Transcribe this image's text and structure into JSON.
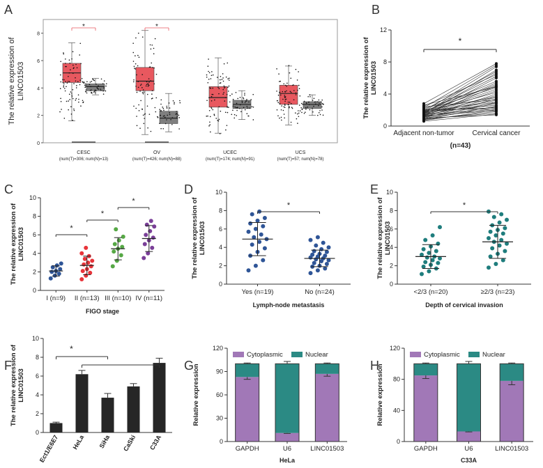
{
  "chart_data": [
    {
      "panel": "A",
      "type": "box",
      "ylabel": "The relative expression of LINC01503",
      "ylim": [
        0,
        9
      ],
      "yticks": [
        0,
        2,
        4,
        6,
        8
      ],
      "groups": [
        {
          "name": "CESC",
          "sub": "(num(T)=306; num(N)=13)",
          "tumor": {
            "q1": 4.4,
            "median": 5.1,
            "q3": 5.8,
            "min": 1.6,
            "max": 7.3
          },
          "normal": {
            "q1": 3.8,
            "median": 4.1,
            "q3": 4.3,
            "min": 3.5,
            "max": 4.7
          },
          "significant": true
        },
        {
          "name": "OV",
          "sub": "(num(T)=426; num(N)=88)",
          "tumor": {
            "q1": 3.8,
            "median": 4.5,
            "q3": 5.5,
            "min": 0.6,
            "max": 8.2
          },
          "normal": {
            "q1": 1.4,
            "median": 1.8,
            "q3": 2.3,
            "min": 0.8,
            "max": 3.6
          },
          "significant": true
        },
        {
          "name": "UCEC",
          "sub": "(num(T)=174; num(N)=91)",
          "tumor": {
            "q1": 2.6,
            "median": 3.3,
            "q3": 4.1,
            "min": 0.7,
            "max": 6.2
          },
          "normal": {
            "q1": 2.5,
            "median": 2.8,
            "q3": 3.1,
            "min": 1.7,
            "max": 3.8
          },
          "significant": false
        },
        {
          "name": "UCS",
          "sub": "(num(T)=57; num(N)=78)",
          "tumor": {
            "q1": 2.8,
            "median": 3.6,
            "q3": 4.2,
            "min": 1.3,
            "max": 5.6
          },
          "normal": {
            "q1": 2.5,
            "median": 2.8,
            "q3": 3.0,
            "min": 2.0,
            "max": 3.5
          },
          "significant": false
        }
      ],
      "colors": {
        "tumor": "#e8585f",
        "normal": "#7f7f7f"
      }
    },
    {
      "panel": "B",
      "type": "paired-line",
      "ylabel": "The relative expression of LINC01503",
      "ylim": [
        0,
        12
      ],
      "yticks": [
        0,
        4,
        8,
        12
      ],
      "categories": [
        "Adjacent non-tumor",
        "Cervical cancer"
      ],
      "note": "(n=43)",
      "significance": "*",
      "pairs": [
        [
          0.6,
          1.5
        ],
        [
          0.7,
          2.0
        ],
        [
          0.8,
          1.8
        ],
        [
          0.8,
          2.5
        ],
        [
          0.9,
          1.6
        ],
        [
          0.9,
          3.0
        ],
        [
          1.0,
          2.2
        ],
        [
          1.0,
          3.4
        ],
        [
          1.0,
          1.4
        ],
        [
          1.1,
          2.8
        ],
        [
          1.1,
          4.0
        ],
        [
          1.2,
          2.4
        ],
        [
          1.2,
          3.6
        ],
        [
          1.2,
          5.0
        ],
        [
          1.3,
          1.9
        ],
        [
          1.3,
          4.4
        ],
        [
          1.3,
          6.0
        ],
        [
          1.4,
          2.9
        ],
        [
          1.4,
          3.8
        ],
        [
          1.4,
          5.4
        ],
        [
          1.5,
          2.0
        ],
        [
          1.5,
          4.6
        ],
        [
          1.5,
          6.6
        ],
        [
          1.6,
          3.2
        ],
        [
          1.6,
          5.2
        ],
        [
          1.6,
          7.0
        ],
        [
          1.7,
          2.6
        ],
        [
          1.7,
          4.2
        ],
        [
          1.7,
          6.2
        ],
        [
          1.8,
          3.0
        ],
        [
          1.8,
          5.6
        ],
        [
          1.8,
          7.4
        ],
        [
          1.9,
          2.3
        ],
        [
          1.9,
          4.8
        ],
        [
          2.0,
          3.6
        ],
        [
          2.0,
          6.8
        ],
        [
          2.1,
          2.1
        ],
        [
          2.2,
          5.0
        ],
        [
          2.3,
          7.6
        ],
        [
          2.4,
          3.3
        ],
        [
          2.5,
          6.4
        ],
        [
          2.6,
          4.9
        ],
        [
          2.8,
          7.8
        ]
      ]
    },
    {
      "panel": "C",
      "type": "scatter",
      "xlabel": "FIGO stage",
      "ylabel": "The relative expression of LINC01503",
      "ylim": [
        0,
        10
      ],
      "yticks": [
        0,
        2,
        4,
        6,
        8,
        10
      ],
      "categories": [
        "I (n=9)",
        "II (n=13)",
        "III (n=10)",
        "IV (n=11)"
      ],
      "means": [
        2.1,
        2.7,
        4.5,
        5.6
      ],
      "sd": [
        0.55,
        1.0,
        1.2,
        1.4
      ],
      "points": [
        [
          1.3,
          1.6,
          1.8,
          2.0,
          2.1,
          2.3,
          2.5,
          2.7,
          2.9
        ],
        [
          1.2,
          1.6,
          1.9,
          2.1,
          2.3,
          2.6,
          2.8,
          3.0,
          3.2,
          3.4,
          3.7,
          4.0,
          4.6
        ],
        [
          2.6,
          3.2,
          3.8,
          4.2,
          4.5,
          4.7,
          5.0,
          5.4,
          5.8,
          6.6
        ],
        [
          3.5,
          4.0,
          4.6,
          5.0,
          5.4,
          5.7,
          6.0,
          6.4,
          6.9,
          7.1,
          7.5
        ]
      ],
      "colors": [
        "#2f5597",
        "#e8343a",
        "#56a845",
        "#7a3f98"
      ],
      "comparisons": [
        {
          "from": 0,
          "to": 1,
          "label": "*"
        },
        {
          "from": 1,
          "to": 2,
          "label": "*"
        },
        {
          "from": 2,
          "to": 3,
          "label": "*"
        }
      ]
    },
    {
      "panel": "D",
      "type": "scatter",
      "xlabel": "Lymph-node metastasis",
      "ylabel": "The relative expression of LINC01503",
      "ylim": [
        0,
        10
      ],
      "yticks": [
        0,
        2,
        4,
        6,
        8,
        10
      ],
      "categories": [
        "Yes (n=19)",
        "No (n=24)"
      ],
      "means": [
        4.9,
        2.8
      ],
      "sd": [
        1.8,
        0.9
      ],
      "points": [
        [
          1.5,
          2.0,
          2.6,
          3.1,
          3.5,
          3.9,
          4.3,
          4.6,
          4.9,
          5.1,
          5.4,
          5.7,
          6.0,
          6.3,
          6.6,
          6.9,
          7.2,
          7.6,
          7.9
        ],
        [
          1.2,
          1.5,
          1.7,
          1.9,
          2.0,
          2.2,
          2.3,
          2.5,
          2.6,
          2.7,
          2.8,
          2.9,
          3.0,
          3.1,
          3.2,
          3.3,
          3.5,
          3.6,
          3.8,
          4.0,
          4.2,
          4.5,
          4.8,
          5.1
        ]
      ],
      "color": "#2f5597",
      "significance": "*"
    },
    {
      "panel": "E",
      "type": "scatter",
      "xlabel": "Depth of cervical invasion",
      "ylabel": "The relative expression of LINC01503",
      "ylim": [
        0,
        10
      ],
      "yticks": [
        0,
        2,
        4,
        6,
        8,
        10
      ],
      "categories": [
        "<2/3 (n=20)",
        "≥2/3 (n=23)"
      ],
      "means": [
        3.0,
        4.6
      ],
      "sd": [
        1.3,
        1.8
      ],
      "points": [
        [
          1.1,
          1.4,
          1.7,
          1.9,
          2.1,
          2.3,
          2.4,
          2.6,
          2.8,
          2.9,
          3.0,
          3.2,
          3.4,
          3.6,
          3.8,
          4.1,
          4.4,
          4.8,
          5.3,
          6.2
        ],
        [
          1.8,
          2.2,
          2.6,
          3.0,
          3.3,
          3.6,
          3.9,
          4.2,
          4.4,
          4.6,
          4.8,
          5.0,
          5.3,
          5.5,
          5.7,
          5.9,
          6.1,
          6.4,
          6.7,
          7.0,
          7.3,
          7.6,
          7.9
        ]
      ],
      "color": "#1f7d7d",
      "significance": "*"
    },
    {
      "panel": "F",
      "type": "bar",
      "ylabel": "The relative expression of LINC01503",
      "ylim": [
        0,
        10
      ],
      "yticks": [
        0,
        2,
        4,
        6,
        8,
        10
      ],
      "categories": [
        "Ect1/E6E7",
        "HeLa",
        "SiHa",
        "CaSki",
        "C33A"
      ],
      "values": [
        1.0,
        6.2,
        3.7,
        4.9,
        7.4
      ],
      "errors": [
        0.1,
        0.4,
        0.45,
        0.3,
        0.5
      ],
      "color": "#262626",
      "significance": "*"
    },
    {
      "panel": "G",
      "type": "stacked-bar",
      "xlabel": "HeLa",
      "ylabel": "Relative expression",
      "ylim": [
        0,
        120
      ],
      "yticks": [
        0,
        30,
        60,
        90,
        120
      ],
      "categories": [
        "GAPDH",
        "U6",
        "LINC01503"
      ],
      "series": [
        {
          "name": "Cytoplasmic",
          "values": [
            83,
            11,
            87
          ],
          "errors": [
            3,
            0.6,
            3
          ],
          "color": "#a178b7"
        },
        {
          "name": "Nuclear",
          "values": [
            17,
            89,
            13
          ],
          "errors": [
            1,
            3,
            1
          ],
          "color": "#2b8a84"
        }
      ]
    },
    {
      "panel": "H",
      "type": "stacked-bar",
      "xlabel": "C33A",
      "ylabel": "Relative expression",
      "ylim": [
        0,
        120
      ],
      "yticks": [
        0,
        40,
        80,
        120
      ],
      "categories": [
        "GAPDH",
        "U6",
        "LINC01503"
      ],
      "series": [
        {
          "name": "Cytoplasmic",
          "values": [
            85,
            13,
            78
          ],
          "errors": [
            4,
            0.6,
            5
          ],
          "color": "#a178b7"
        },
        {
          "name": "Nuclear",
          "values": [
            15,
            87,
            22
          ],
          "errors": [
            1,
            3,
            1
          ],
          "color": "#2b8a84"
        }
      ]
    }
  ]
}
